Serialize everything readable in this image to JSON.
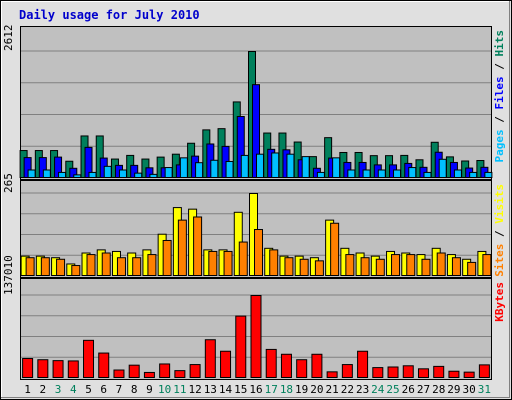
{
  "chart_data": {
    "type": "bar",
    "title": "Daily usage for July 2010",
    "categories": [
      "1",
      "2",
      "3",
      "4",
      "5",
      "6",
      "7",
      "8",
      "9",
      "10",
      "11",
      "12",
      "13",
      "14",
      "15",
      "16",
      "17",
      "18",
      "19",
      "20",
      "21",
      "22",
      "23",
      "24",
      "25",
      "26",
      "27",
      "28",
      "29",
      "30",
      "31"
    ],
    "weekend_days": [
      "3",
      "4",
      "10",
      "11",
      "17",
      "18",
      "24",
      "25",
      "31"
    ],
    "colors": {
      "background": "#C0C0C0",
      "frame": "#E0E0E0",
      "title": "#0000CC",
      "hits": "#00805C",
      "files": "#0000FF",
      "pages": "#00C0FF",
      "visits": "#FFFF00",
      "sites": "#FF8000",
      "kbytes": "#FF0000",
      "weekday_label": "#000000",
      "weekend_label": "#00805C",
      "gridline": "#808080"
    },
    "panels": [
      {
        "id": "hits-files-pages",
        "y_max_label": "2612",
        "ylim": [
          0,
          2612
        ],
        "legend": [
          {
            "text": "Pages",
            "color_key": "pages"
          },
          {
            "text": " / ",
            "color_key": "weekday_label"
          },
          {
            "text": "Files",
            "color_key": "files"
          },
          {
            "text": " / ",
            "color_key": "weekday_label"
          },
          {
            "text": "Hits",
            "color_key": "hits"
          }
        ],
        "series": [
          {
            "name": "Hits",
            "color_key": "hits",
            "values": [
              575,
              575,
              575,
              355,
              875,
              875,
              400,
              475,
              400,
              440,
              500,
              725,
              1000,
              1025,
              1575,
              2612,
              935,
              935,
              750,
              450,
              840,
              535,
              535,
              470,
              470,
              475,
              385,
              745,
              445,
              360,
              370
            ]
          },
          {
            "name": "Files",
            "color_key": "files",
            "values": [
              430,
              430,
              440,
              210,
              640,
              420,
              270,
              270,
              220,
              220,
              280,
              460,
              710,
              660,
              1275,
              1930,
              600,
              590,
              385,
              210,
              420,
              330,
              330,
              280,
              280,
              310,
              230,
              540,
              330,
              215,
              230
            ]
          },
          {
            "name": "Pages",
            "color_key": "pages",
            "values": [
              175,
              175,
              125,
              75,
              125,
              250,
              175,
              110,
              85,
              225,
              425,
              325,
              375,
              350,
              475,
              500,
              525,
              500,
              450,
              125,
              425,
              175,
              175,
              175,
              175,
              225,
              125,
              395,
              175,
              125,
              125
            ]
          }
        ]
      },
      {
        "id": "visits-sites",
        "y_max_label": "265",
        "ylim": [
          0,
          265
        ],
        "legend": [
          {
            "text": "Sites",
            "color_key": "sites"
          },
          {
            "text": " / ",
            "color_key": "weekday_label"
          },
          {
            "text": "Visits",
            "color_key": "visits"
          }
        ],
        "series": [
          {
            "name": "Visits",
            "color_key": "visits",
            "values": [
              65,
              65,
              60,
              40,
              75,
              85,
              80,
              75,
              85,
              135,
              220,
              215,
              85,
              85,
              205,
              265,
              90,
              65,
              65,
              60,
              180,
              90,
              75,
              65,
              80,
              75,
              70,
              90,
              70,
              55,
              80
            ]
          },
          {
            "name": "Sites",
            "color_key": "sites",
            "values": [
              60,
              60,
              55,
              35,
              70,
              75,
              60,
              60,
              70,
              115,
              180,
              190,
              80,
              80,
              110,
              150,
              85,
              60,
              55,
              50,
              170,
              70,
              60,
              55,
              70,
              70,
              55,
              75,
              60,
              45,
              70
            ]
          }
        ]
      },
      {
        "id": "kbytes",
        "y_max_label": "137010",
        "ylim": [
          0,
          137010
        ],
        "legend": [
          {
            "text": "KBytes",
            "color_key": "kbytes"
          }
        ],
        "series": [
          {
            "name": "KBytes",
            "color_key": "kbytes",
            "values": [
              33000,
              31000,
              29500,
              29000,
              63000,
              42000,
              14000,
              22000,
              10000,
              24000,
              13000,
              23000,
              64000,
              45000,
              103000,
              137010,
              48000,
              40000,
              31000,
              40000,
              11000,
              23000,
              45000,
              18000,
              19000,
              21000,
              16000,
              20000,
              12000,
              10500,
              22500
            ]
          }
        ]
      }
    ]
  }
}
